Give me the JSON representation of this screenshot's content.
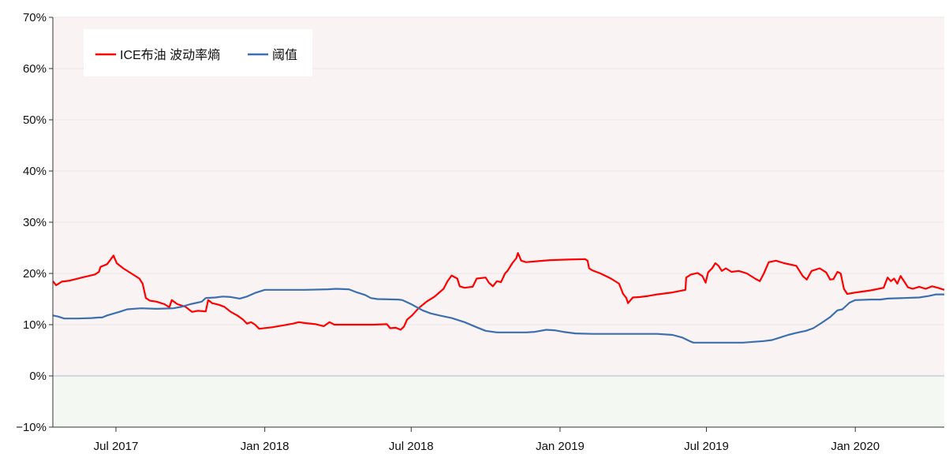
{
  "chart_data": {
    "type": "line",
    "title": "",
    "xlabel": "",
    "ylabel": "",
    "x_range": [
      "2017-04-14",
      "2020-04-20"
    ],
    "ylim": [
      -10,
      70
    ],
    "y_ticks": [
      -10,
      0,
      10,
      20,
      30,
      40,
      50,
      60,
      70
    ],
    "y_tick_labels": [
      "−10%",
      "0%",
      "10%",
      "20%",
      "30%",
      "40%",
      "50%",
      "60%",
      "70%"
    ],
    "x_ticks": [
      {
        "date": "2017-07-01",
        "label": "Jul 2017"
      },
      {
        "date": "2018-01-01",
        "label": "Jan 2018"
      },
      {
        "date": "2018-07-01",
        "label": "Jul 2018"
      },
      {
        "date": "2019-01-01",
        "label": "Jan 2019"
      },
      {
        "date": "2019-07-01",
        "label": "Jul 2019"
      },
      {
        "date": "2020-01-01",
        "label": "Jan 2020"
      }
    ],
    "legend": {
      "position": "top-left"
    },
    "grid": true,
    "background": {
      "positive": "#f9f3f3",
      "negative": "#f4f8f3"
    },
    "series": [
      {
        "name": "ICE布油 波动率熵",
        "color": "#ff0000",
        "points": [
          [
            "2017-04-14",
            18.5
          ],
          [
            "2017-04-18",
            17.7
          ],
          [
            "2017-04-25",
            18.4
          ],
          [
            "2017-05-05",
            18.6
          ],
          [
            "2017-05-20",
            19.2
          ],
          [
            "2017-06-05",
            19.8
          ],
          [
            "2017-06-10",
            20.3
          ],
          [
            "2017-06-12",
            21.3
          ],
          [
            "2017-06-20",
            21.8
          ],
          [
            "2017-06-28",
            23.5
          ],
          [
            "2017-07-02",
            22.0
          ],
          [
            "2017-07-10",
            21.0
          ],
          [
            "2017-07-20",
            20.0
          ],
          [
            "2017-07-30",
            19.0
          ],
          [
            "2017-08-03",
            18.0
          ],
          [
            "2017-08-07",
            15.2
          ],
          [
            "2017-08-12",
            14.7
          ],
          [
            "2017-08-20",
            14.5
          ],
          [
            "2017-08-30",
            14.0
          ],
          [
            "2017-09-05",
            13.4
          ],
          [
            "2017-09-08",
            14.8
          ],
          [
            "2017-09-15",
            14.0
          ],
          [
            "2017-09-25",
            13.5
          ],
          [
            "2017-10-03",
            12.5
          ],
          [
            "2017-10-10",
            12.7
          ],
          [
            "2017-10-20",
            12.6
          ],
          [
            "2017-10-23",
            14.8
          ],
          [
            "2017-10-28",
            14.2
          ],
          [
            "2017-11-05",
            13.9
          ],
          [
            "2017-11-12",
            13.5
          ],
          [
            "2017-11-20",
            12.5
          ],
          [
            "2017-11-28",
            11.8
          ],
          [
            "2017-12-05",
            11.0
          ],
          [
            "2017-12-10",
            10.2
          ],
          [
            "2017-12-15",
            10.5
          ],
          [
            "2017-12-20",
            10.0
          ],
          [
            "2017-12-25",
            9.2
          ],
          [
            "2018-01-10",
            9.5
          ],
          [
            "2018-02-05",
            10.2
          ],
          [
            "2018-02-12",
            10.5
          ],
          [
            "2018-02-20",
            10.3
          ],
          [
            "2018-03-05",
            10.1
          ],
          [
            "2018-03-15",
            9.7
          ],
          [
            "2018-03-22",
            10.5
          ],
          [
            "2018-03-28",
            10.0
          ],
          [
            "2018-04-20",
            10.0
          ],
          [
            "2018-05-15",
            10.0
          ],
          [
            "2018-06-01",
            10.1
          ],
          [
            "2018-06-05",
            9.3
          ],
          [
            "2018-06-12",
            9.4
          ],
          [
            "2018-06-18",
            9.0
          ],
          [
            "2018-06-22",
            9.6
          ],
          [
            "2018-06-26",
            11.0
          ],
          [
            "2018-07-02",
            11.8
          ],
          [
            "2018-07-10",
            13.2
          ],
          [
            "2018-07-20",
            14.5
          ],
          [
            "2018-07-30",
            15.5
          ],
          [
            "2018-08-10",
            17.0
          ],
          [
            "2018-08-15",
            18.5
          ],
          [
            "2018-08-20",
            19.6
          ],
          [
            "2018-08-27",
            19.0
          ],
          [
            "2018-08-30",
            17.5
          ],
          [
            "2018-09-05",
            17.2
          ],
          [
            "2018-09-15",
            17.4
          ],
          [
            "2018-09-20",
            19.0
          ],
          [
            "2018-10-01",
            19.2
          ],
          [
            "2018-10-05",
            18.2
          ],
          [
            "2018-10-10",
            17.5
          ],
          [
            "2018-10-15",
            18.5
          ],
          [
            "2018-10-20",
            18.3
          ],
          [
            "2018-10-25",
            20.0
          ],
          [
            "2018-10-28",
            20.5
          ],
          [
            "2018-11-03",
            22.0
          ],
          [
            "2018-11-08",
            23.0
          ],
          [
            "2018-11-10",
            24.0
          ],
          [
            "2018-11-14",
            22.5
          ],
          [
            "2018-11-20",
            22.2
          ],
          [
            "2018-12-05",
            22.4
          ],
          [
            "2018-12-20",
            22.6
          ],
          [
            "2019-01-10",
            22.7
          ],
          [
            "2019-02-01",
            22.8
          ],
          [
            "2019-02-04",
            22.5
          ],
          [
            "2019-02-06",
            21.0
          ],
          [
            "2019-02-10",
            20.6
          ],
          [
            "2019-02-20",
            20.0
          ],
          [
            "2019-03-05",
            19.0
          ],
          [
            "2019-03-15",
            18.0
          ],
          [
            "2019-03-20",
            16.0
          ],
          [
            "2019-03-24",
            15.2
          ],
          [
            "2019-03-26",
            14.2
          ],
          [
            "2019-04-01",
            15.3
          ],
          [
            "2019-04-10",
            15.4
          ],
          [
            "2019-04-20",
            15.6
          ],
          [
            "2019-05-01",
            15.9
          ],
          [
            "2019-05-20",
            16.3
          ],
          [
            "2019-06-05",
            16.8
          ],
          [
            "2019-06-06",
            19.2
          ],
          [
            "2019-06-12",
            19.8
          ],
          [
            "2019-06-20",
            20.1
          ],
          [
            "2019-06-26",
            19.5
          ],
          [
            "2019-06-30",
            18.2
          ],
          [
            "2019-07-03",
            20.2
          ],
          [
            "2019-07-08",
            21.0
          ],
          [
            "2019-07-12",
            22.0
          ],
          [
            "2019-07-16",
            21.5
          ],
          [
            "2019-07-20",
            20.5
          ],
          [
            "2019-07-25",
            21.0
          ],
          [
            "2019-08-01",
            20.3
          ],
          [
            "2019-08-10",
            20.5
          ],
          [
            "2019-08-20",
            20.0
          ],
          [
            "2019-08-30",
            19.0
          ],
          [
            "2019-09-05",
            18.5
          ],
          [
            "2019-09-10",
            20.0
          ],
          [
            "2019-09-16",
            22.2
          ],
          [
            "2019-09-25",
            22.5
          ],
          [
            "2019-10-05",
            22.0
          ],
          [
            "2019-10-20",
            21.5
          ],
          [
            "2019-10-28",
            19.5
          ],
          [
            "2019-11-02",
            18.8
          ],
          [
            "2019-11-08",
            20.5
          ],
          [
            "2019-11-18",
            21.0
          ],
          [
            "2019-11-26",
            20.2
          ],
          [
            "2019-12-01",
            18.8
          ],
          [
            "2019-12-05",
            18.9
          ],
          [
            "2019-12-10",
            20.3
          ],
          [
            "2019-12-14",
            20.0
          ],
          [
            "2019-12-18",
            17.0
          ],
          [
            "2019-12-22",
            16.0
          ],
          [
            "2020-01-02",
            16.3
          ],
          [
            "2020-01-20",
            16.7
          ],
          [
            "2020-02-05",
            17.2
          ],
          [
            "2020-02-10",
            19.2
          ],
          [
            "2020-02-14",
            18.5
          ],
          [
            "2020-02-18",
            19.0
          ],
          [
            "2020-02-22",
            18.0
          ],
          [
            "2020-02-26",
            19.5
          ],
          [
            "2020-03-02",
            18.3
          ],
          [
            "2020-03-06",
            17.3
          ],
          [
            "2020-03-12",
            17.0
          ],
          [
            "2020-03-20",
            17.4
          ],
          [
            "2020-03-28",
            17.0
          ],
          [
            "2020-04-05",
            17.5
          ],
          [
            "2020-04-12",
            17.2
          ],
          [
            "2020-04-20",
            16.8
          ]
        ]
      },
      {
        "name": "阈值",
        "color": "#3b6fb0",
        "points": [
          [
            "2017-04-14",
            11.8
          ],
          [
            "2017-04-20",
            11.6
          ],
          [
            "2017-04-28",
            11.2
          ],
          [
            "2017-05-15",
            11.2
          ],
          [
            "2017-06-01",
            11.3
          ],
          [
            "2017-06-10",
            11.4
          ],
          [
            "2017-06-14",
            11.4
          ],
          [
            "2017-06-20",
            11.8
          ],
          [
            "2017-07-05",
            12.5
          ],
          [
            "2017-07-15",
            13.0
          ],
          [
            "2017-08-01",
            13.2
          ],
          [
            "2017-08-20",
            13.1
          ],
          [
            "2017-09-10",
            13.2
          ],
          [
            "2017-09-20",
            13.5
          ],
          [
            "2017-10-01",
            14.0
          ],
          [
            "2017-10-15",
            14.5
          ],
          [
            "2017-10-20",
            15.2
          ],
          [
            "2017-11-01",
            15.3
          ],
          [
            "2017-11-10",
            15.5
          ],
          [
            "2017-11-20",
            15.4
          ],
          [
            "2017-12-01",
            15.1
          ],
          [
            "2017-12-10",
            15.5
          ],
          [
            "2017-12-20",
            16.2
          ],
          [
            "2018-01-01",
            16.8
          ],
          [
            "2018-01-20",
            16.8
          ],
          [
            "2018-02-20",
            16.8
          ],
          [
            "2018-03-20",
            16.9
          ],
          [
            "2018-03-30",
            17.0
          ],
          [
            "2018-04-15",
            16.9
          ],
          [
            "2018-04-25",
            16.3
          ],
          [
            "2018-05-05",
            15.8
          ],
          [
            "2018-05-12",
            15.2
          ],
          [
            "2018-05-20",
            15.0
          ],
          [
            "2018-06-15",
            14.9
          ],
          [
            "2018-06-20",
            14.8
          ],
          [
            "2018-07-01",
            14.0
          ],
          [
            "2018-07-15",
            12.8
          ],
          [
            "2018-07-25",
            12.2
          ],
          [
            "2018-08-05",
            11.8
          ],
          [
            "2018-08-20",
            11.3
          ],
          [
            "2018-09-05",
            10.5
          ],
          [
            "2018-09-20",
            9.5
          ],
          [
            "2018-10-01",
            8.8
          ],
          [
            "2018-10-15",
            8.5
          ],
          [
            "2018-11-01",
            8.5
          ],
          [
            "2018-11-20",
            8.5
          ],
          [
            "2018-12-01",
            8.6
          ],
          [
            "2018-12-15",
            9.0
          ],
          [
            "2018-12-25",
            8.9
          ],
          [
            "2019-01-05",
            8.6
          ],
          [
            "2019-01-20",
            8.3
          ],
          [
            "2019-02-10",
            8.2
          ],
          [
            "2019-03-01",
            8.2
          ],
          [
            "2019-04-01",
            8.2
          ],
          [
            "2019-05-01",
            8.2
          ],
          [
            "2019-05-20",
            8.0
          ],
          [
            "2019-06-01",
            7.5
          ],
          [
            "2019-06-10",
            6.8
          ],
          [
            "2019-06-15",
            6.5
          ],
          [
            "2019-07-15",
            6.5
          ],
          [
            "2019-08-15",
            6.5
          ],
          [
            "2019-09-10",
            6.8
          ],
          [
            "2019-09-20",
            7.0
          ],
          [
            "2019-09-30",
            7.5
          ],
          [
            "2019-10-10",
            8.0
          ],
          [
            "2019-10-20",
            8.4
          ],
          [
            "2019-11-01",
            8.8
          ],
          [
            "2019-11-10",
            9.3
          ],
          [
            "2019-11-20",
            10.3
          ],
          [
            "2019-12-01",
            11.5
          ],
          [
            "2019-12-10",
            12.8
          ],
          [
            "2019-12-16",
            13.0
          ],
          [
            "2019-12-25",
            14.3
          ],
          [
            "2020-01-01",
            14.8
          ],
          [
            "2020-01-20",
            14.9
          ],
          [
            "2020-02-01",
            14.9
          ],
          [
            "2020-02-10",
            15.1
          ],
          [
            "2020-03-01",
            15.2
          ],
          [
            "2020-03-20",
            15.3
          ],
          [
            "2020-04-01",
            15.6
          ],
          [
            "2020-04-10",
            15.9
          ],
          [
            "2020-04-20",
            15.9
          ]
        ]
      }
    ]
  }
}
